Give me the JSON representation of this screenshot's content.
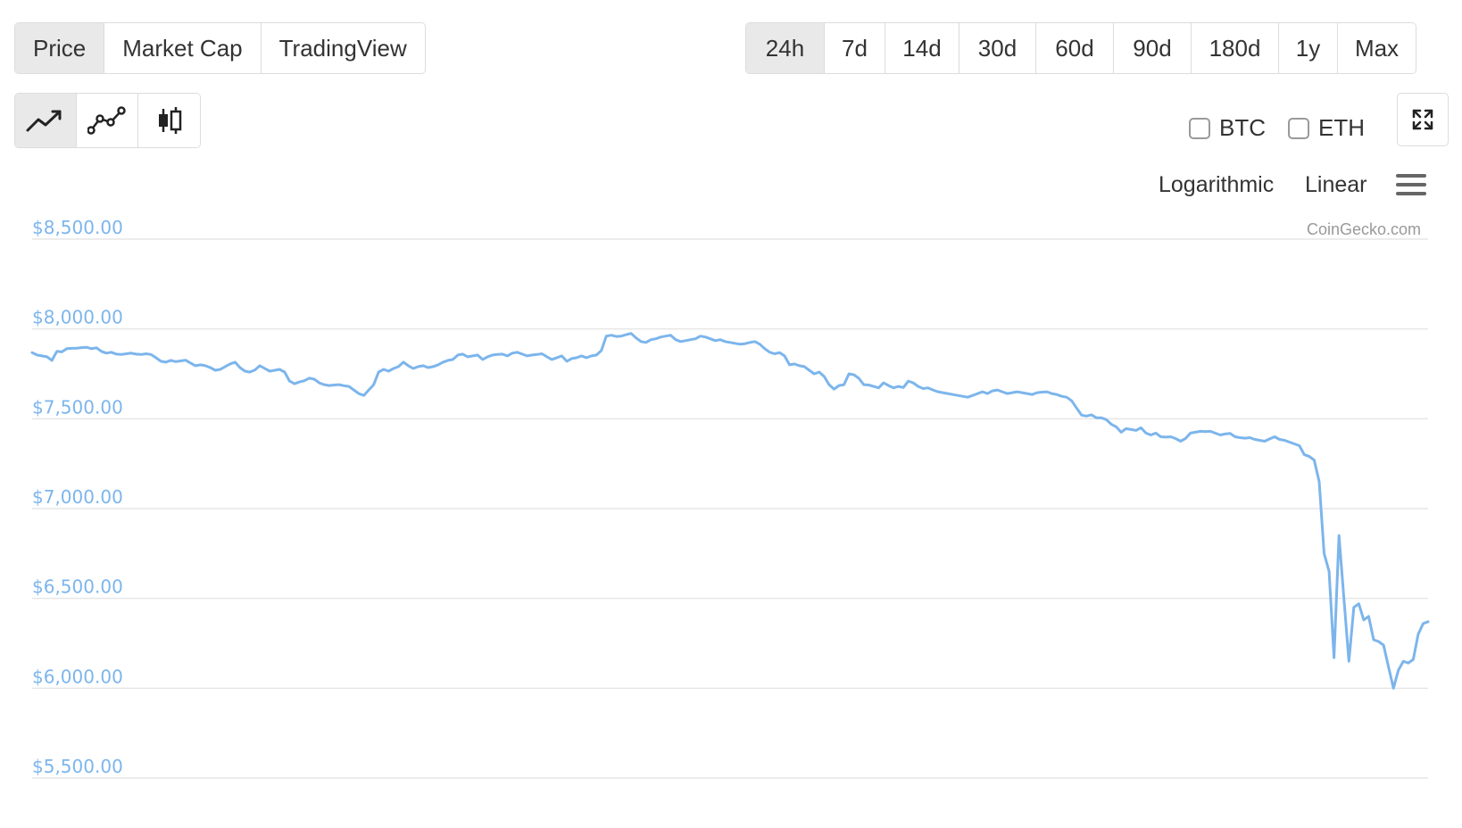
{
  "type_tabs": [
    {
      "label": "Price",
      "active": true
    },
    {
      "label": "Market Cap",
      "active": false
    },
    {
      "label": "TradingView",
      "active": false
    }
  ],
  "range_tabs": [
    {
      "label": "24h",
      "active": true
    },
    {
      "label": "7d",
      "active": false
    },
    {
      "label": "14d",
      "active": false
    },
    {
      "label": "30d",
      "active": false
    },
    {
      "label": "60d",
      "active": false
    },
    {
      "label": "90d",
      "active": false
    },
    {
      "label": "180d",
      "active": false
    },
    {
      "label": "1y",
      "active": false
    },
    {
      "label": "Max",
      "active": false
    }
  ],
  "style_tabs": [
    {
      "icon": "line-chart-icon",
      "active": true
    },
    {
      "icon": "point-line-chart-icon",
      "active": false
    },
    {
      "icon": "candlestick-icon",
      "active": false
    }
  ],
  "compare": {
    "btc_label": "BTC",
    "eth_label": "ETH",
    "btc_checked": false,
    "eth_checked": false
  },
  "scale": {
    "log_label": "Logarithmic",
    "linear_label": "Linear"
  },
  "credit": "CoinGecko.com",
  "colors": {
    "line": "#7cb5ec",
    "grid": "#e6e6e6",
    "active_tab": "#e9e9e9"
  },
  "chart_data": {
    "type": "line",
    "title": "",
    "xlabel": "",
    "ylabel": "",
    "ylim": [
      5500,
      8500
    ],
    "yticks": [
      8500,
      8000,
      7500,
      7000,
      6500,
      6000,
      5500
    ],
    "ytick_labels": [
      "$8,500.00",
      "$8,000.00",
      "$7,500.00",
      "$7,000.00",
      "$6,500.00",
      "$6,000.00",
      "$5,500.00"
    ],
    "grid": true,
    "legend": "none",
    "series": [
      {
        "values": [
          7868,
          7855,
          7850,
          7845,
          7825,
          7875,
          7872,
          7890,
          7892,
          7893,
          7896,
          7898,
          7890,
          7895,
          7875,
          7865,
          7870,
          7860,
          7858,
          7862,
          7865,
          7860,
          7858,
          7862,
          7858,
          7840,
          7820,
          7815,
          7825,
          7818,
          7822,
          7826,
          7810,
          7795,
          7800,
          7795,
          7785,
          7770,
          7775,
          7790,
          7805,
          7815,
          7785,
          7765,
          7760,
          7772,
          7795,
          7780,
          7765,
          7770,
          7775,
          7760,
          7710,
          7695,
          7705,
          7712,
          7726,
          7720,
          7700,
          7690,
          7685,
          7688,
          7690,
          7684,
          7680,
          7660,
          7640,
          7630,
          7660,
          7690,
          7760,
          7775,
          7765,
          7780,
          7790,
          7815,
          7795,
          7780,
          7790,
          7795,
          7785,
          7790,
          7800,
          7815,
          7825,
          7830,
          7855,
          7860,
          7845,
          7850,
          7855,
          7830,
          7845,
          7855,
          7858,
          7860,
          7850,
          7865,
          7870,
          7860,
          7850,
          7855,
          7858,
          7862,
          7845,
          7830,
          7840,
          7850,
          7820,
          7835,
          7840,
          7850,
          7840,
          7850,
          7855,
          7880,
          7960,
          7965,
          7958,
          7960,
          7968,
          7975,
          7950,
          7930,
          7925,
          7940,
          7945,
          7955,
          7960,
          7965,
          7940,
          7930,
          7935,
          7940,
          7945,
          7960,
          7955,
          7945,
          7935,
          7940,
          7930,
          7925,
          7920,
          7915,
          7918,
          7925,
          7930,
          7915,
          7890,
          7870,
          7862,
          7868,
          7850,
          7800,
          7805,
          7795,
          7790,
          7770,
          7750,
          7760,
          7735,
          7690,
          7665,
          7685,
          7690,
          7750,
          7745,
          7725,
          7690,
          7688,
          7680,
          7672,
          7700,
          7685,
          7672,
          7680,
          7674,
          7710,
          7700,
          7680,
          7668,
          7672,
          7660,
          7650,
          7645,
          7640,
          7635,
          7630,
          7625,
          7620,
          7630,
          7640,
          7650,
          7640,
          7655,
          7660,
          7650,
          7640,
          7645,
          7650,
          7645,
          7640,
          7635,
          7645,
          7648,
          7650,
          7640,
          7635,
          7625,
          7620,
          7600,
          7560,
          7520,
          7515,
          7522,
          7505,
          7505,
          7495,
          7470,
          7455,
          7425,
          7445,
          7440,
          7435,
          7450,
          7420,
          7410,
          7420,
          7400,
          7398,
          7400,
          7390,
          7375,
          7390,
          7420,
          7425,
          7430,
          7428,
          7430,
          7420,
          7410,
          7415,
          7418,
          7400,
          7395,
          7392,
          7395,
          7385,
          7380,
          7375,
          7388,
          7400,
          7385,
          7380,
          7370,
          7360,
          7350,
          7300,
          7290,
          7270,
          7150,
          6750,
          6650,
          6170,
          6850,
          6500,
          6150,
          6450,
          6470,
          6380,
          6400,
          6270,
          6260,
          6240,
          6120,
          6000,
          6100,
          6150,
          6140,
          6160,
          6300,
          6360,
          6370
        ]
      }
    ]
  }
}
